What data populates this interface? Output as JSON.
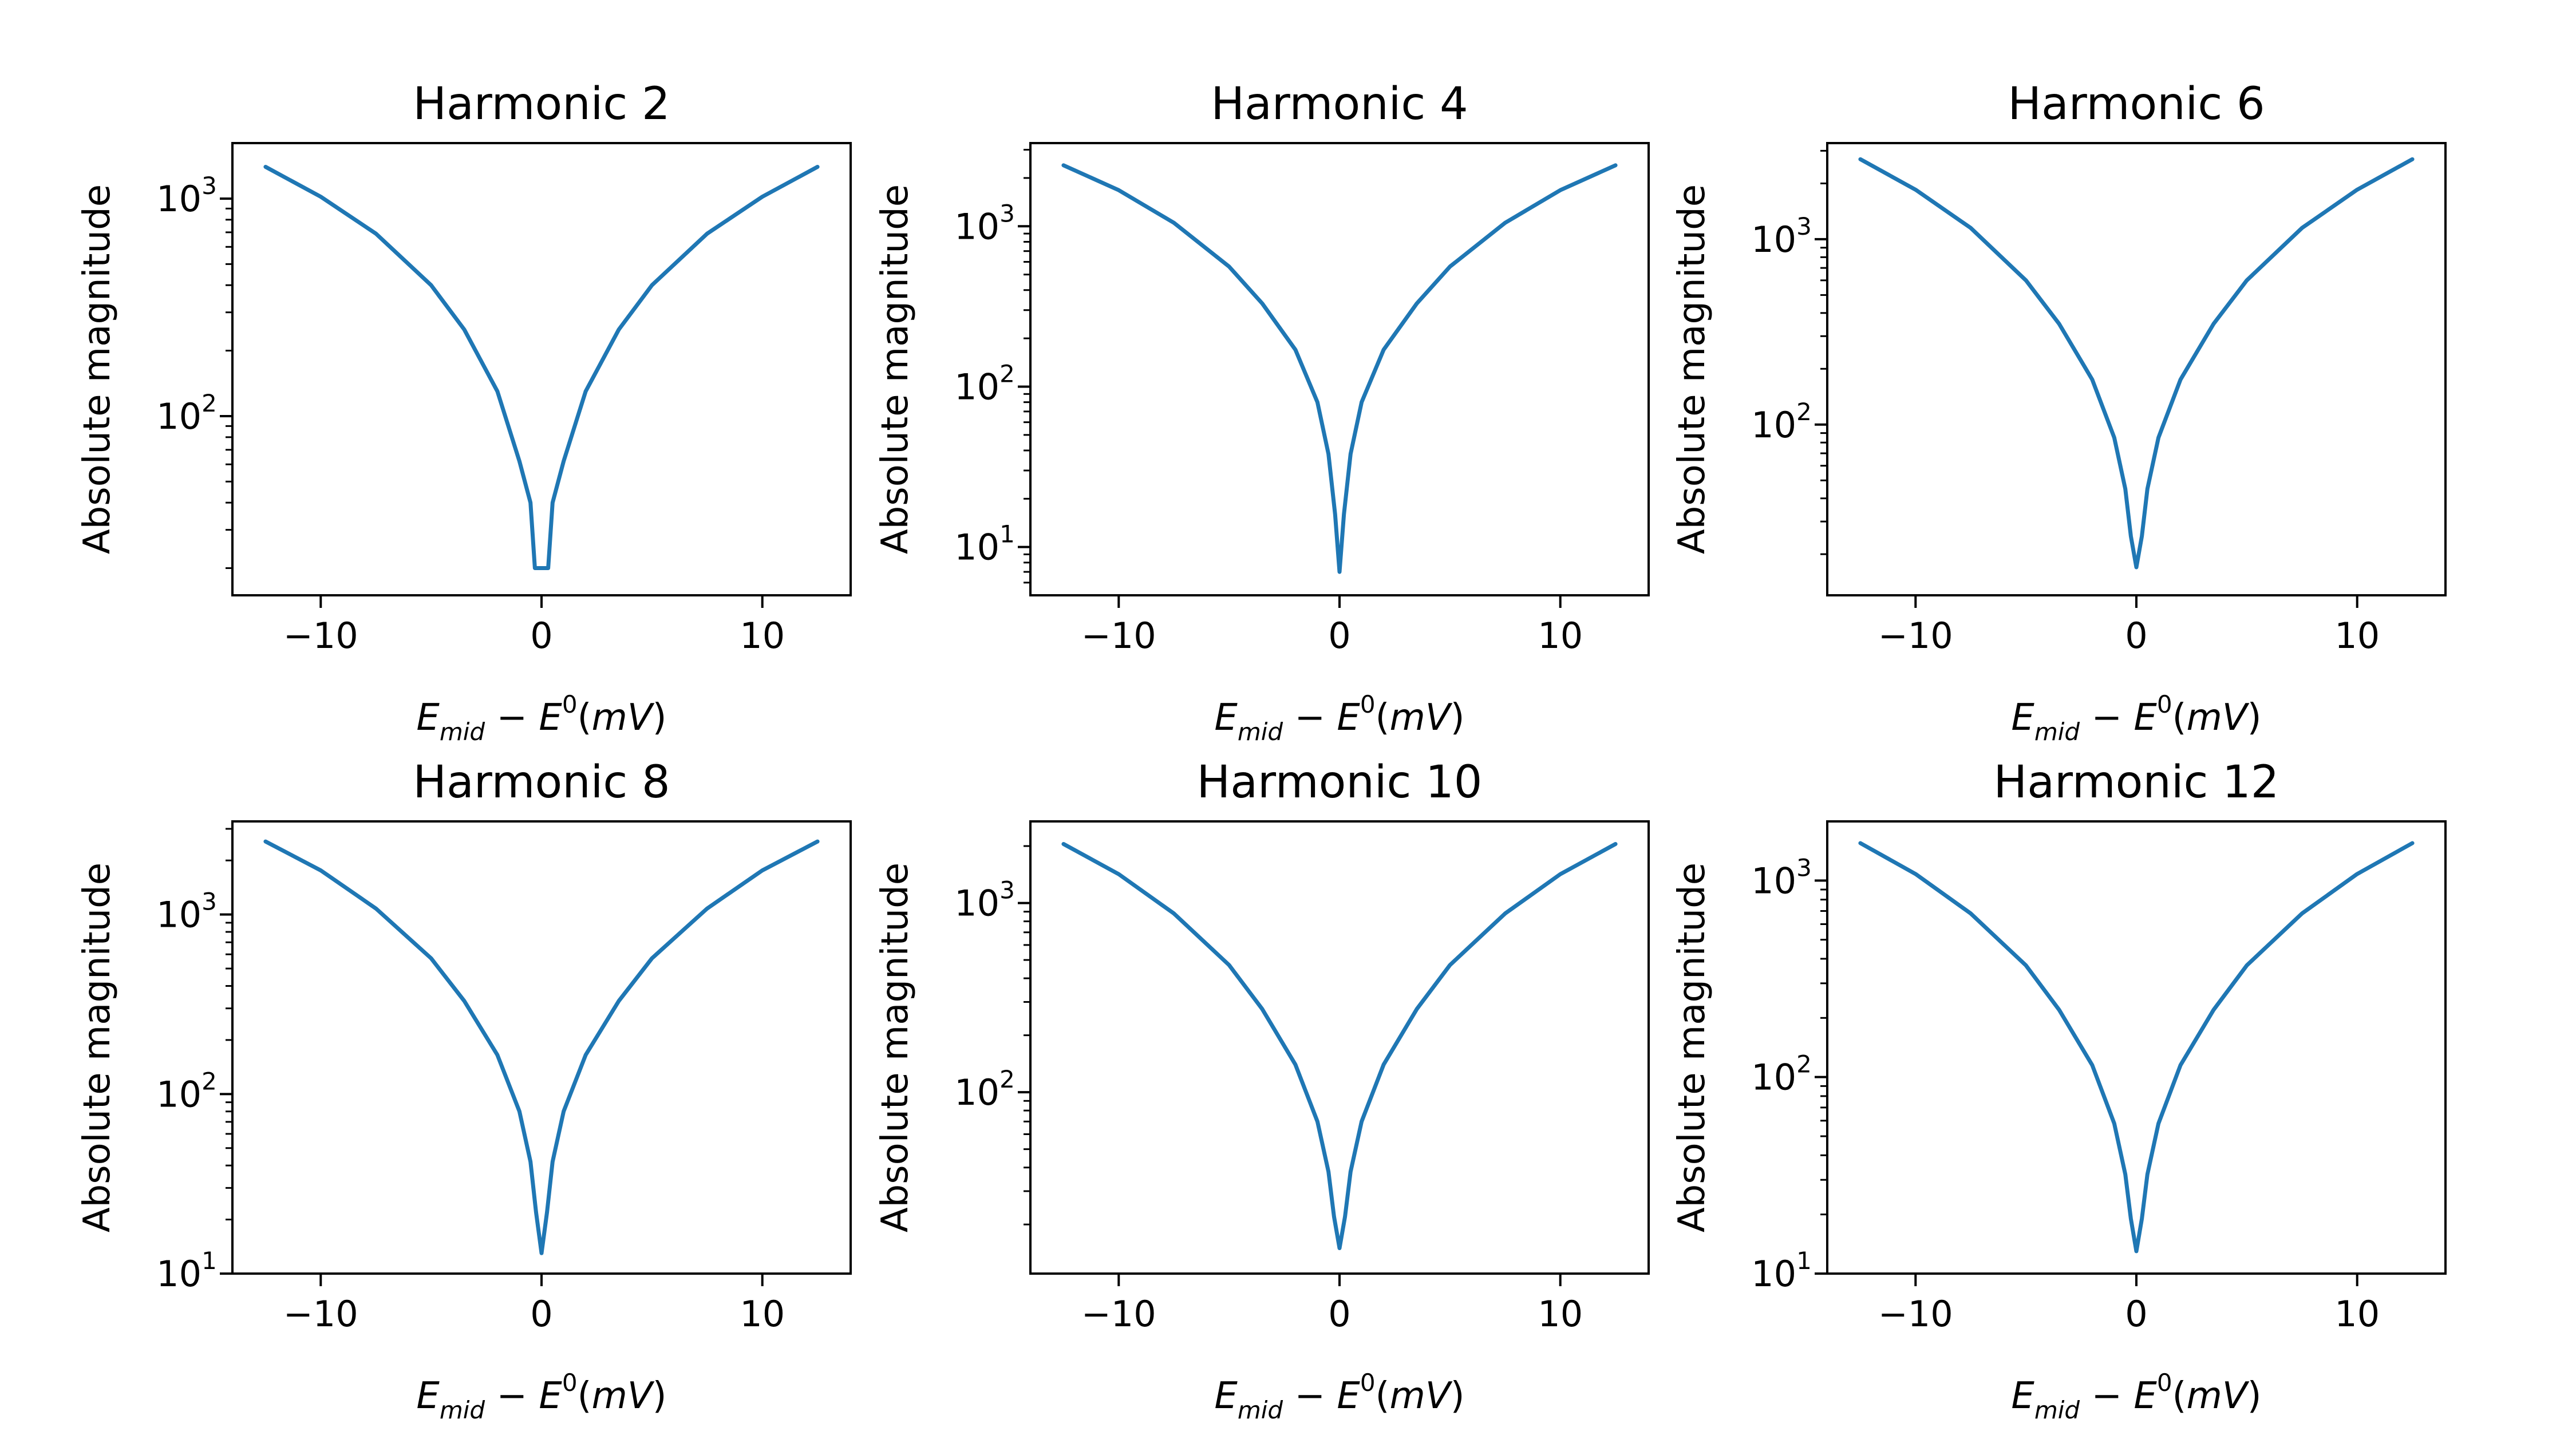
{
  "colors": {
    "series": "#1f77b4",
    "axes": "#000000",
    "background": "#ffffff"
  },
  "chart_data": [
    {
      "type": "line",
      "title": "Harmonic 2",
      "xlabel": "E_mid − E^0(mV)",
      "ylabel": "Absolute magnitude",
      "yscale": "log",
      "xlim": [
        -14,
        14
      ],
      "ylim": [
        15,
        1800
      ],
      "xticks": [
        -10,
        0,
        10
      ],
      "yticks": [
        100,
        1000
      ],
      "grid": false,
      "series": [
        {
          "x": [
            -12.5,
            -10,
            -7.5,
            -5,
            -3.5,
            -2,
            -1,
            -0.5,
            -0.3,
            0,
            0.3,
            0.5,
            1,
            2,
            3.5,
            5,
            7.5,
            10,
            12.5
          ],
          "y": [
            1400,
            1020,
            690,
            400,
            250,
            130,
            62,
            40,
            20,
            20,
            20,
            40,
            62,
            130,
            250,
            400,
            690,
            1020,
            1400
          ]
        }
      ]
    },
    {
      "type": "line",
      "title": "Harmonic 4",
      "xlabel": "E_mid − E^0(mV)",
      "ylabel": "Absolute magnitude",
      "yscale": "log",
      "xlim": [
        -14,
        14
      ],
      "ylim": [
        5,
        3300
      ],
      "xticks": [
        -10,
        0,
        10
      ],
      "yticks": [
        10,
        100,
        1000
      ],
      "grid": false,
      "series": [
        {
          "x": [
            -12.5,
            -10,
            -7.5,
            -5,
            -3.5,
            -2,
            -1,
            -0.5,
            -0.2,
            0,
            0.2,
            0.5,
            1,
            2,
            3.5,
            5,
            7.5,
            10,
            12.5
          ],
          "y": [
            2400,
            1680,
            1050,
            560,
            330,
            170,
            80,
            38,
            16,
            7,
            16,
            38,
            80,
            170,
            330,
            560,
            1050,
            1680,
            2400
          ]
        }
      ]
    },
    {
      "type": "line",
      "title": "Harmonic 6",
      "xlabel": "E_mid − E^0(mV)",
      "ylabel": "Absolute magnitude",
      "yscale": "log",
      "xlim": [
        -14,
        14
      ],
      "ylim": [
        12,
        3300
      ],
      "xticks": [
        -10,
        0,
        10
      ],
      "yticks": [
        100,
        1000
      ],
      "grid": false,
      "series": [
        {
          "x": [
            -12.5,
            -10,
            -7.5,
            -5,
            -3.5,
            -2,
            -1,
            -0.5,
            -0.25,
            0,
            0.25,
            0.5,
            1,
            2,
            3.5,
            5,
            7.5,
            10,
            12.5
          ],
          "y": [
            2700,
            1850,
            1150,
            600,
            350,
            175,
            85,
            45,
            25,
            17,
            25,
            45,
            85,
            175,
            350,
            600,
            1150,
            1850,
            2700
          ]
        }
      ]
    },
    {
      "type": "line",
      "title": "Harmonic 8",
      "xlabel": "E_mid − E^0(mV)",
      "ylabel": "Absolute magnitude",
      "yscale": "log",
      "xlim": [
        -14,
        14
      ],
      "ylim": [
        10,
        3300
      ],
      "xticks": [
        -10,
        0,
        10
      ],
      "yticks": [
        10,
        100,
        1000
      ],
      "grid": false,
      "series": [
        {
          "x": [
            -12.5,
            -10,
            -7.5,
            -5,
            -3.5,
            -2,
            -1,
            -0.5,
            -0.25,
            0,
            0.25,
            0.5,
            1,
            2,
            3.5,
            5,
            7.5,
            10,
            12.5
          ],
          "y": [
            2550,
            1760,
            1080,
            570,
            330,
            165,
            80,
            42,
            22,
            13,
            22,
            42,
            80,
            165,
            330,
            570,
            1080,
            1760,
            2550
          ]
        }
      ]
    },
    {
      "type": "line",
      "title": "Harmonic 10",
      "xlabel": "E_mid − E^0(mV)",
      "ylabel": "Absolute magnitude",
      "yscale": "log",
      "xlim": [
        -14,
        14
      ],
      "ylim": [
        11,
        2700
      ],
      "xticks": [
        -10,
        0,
        10
      ],
      "yticks": [
        100,
        1000
      ],
      "grid": false,
      "series": [
        {
          "x": [
            -12.5,
            -10,
            -7.5,
            -5,
            -3.5,
            -2,
            -1,
            -0.5,
            -0.25,
            0,
            0.25,
            0.5,
            1,
            2,
            3.5,
            5,
            7.5,
            10,
            12.5
          ],
          "y": [
            2050,
            1420,
            880,
            470,
            275,
            140,
            70,
            38,
            22,
            15,
            22,
            38,
            70,
            140,
            275,
            470,
            880,
            1420,
            2050
          ]
        }
      ]
    },
    {
      "type": "line",
      "title": "Harmonic 12",
      "xlabel": "E_mid − E^0(mV)",
      "ylabel": "Absolute magnitude",
      "yscale": "log",
      "xlim": [
        -14,
        14
      ],
      "ylim": [
        10,
        2000
      ],
      "xticks": [
        -10,
        0,
        10
      ],
      "yticks": [
        10,
        100,
        1000
      ],
      "grid": false,
      "series": [
        {
          "x": [
            -12.5,
            -10,
            -7.5,
            -5,
            -3.5,
            -2,
            -1,
            -0.5,
            -0.25,
            0,
            0.25,
            0.5,
            1,
            2,
            3.5,
            5,
            7.5,
            10,
            12.5
          ],
          "y": [
            1550,
            1080,
            680,
            370,
            220,
            115,
            58,
            32,
            19,
            13,
            19,
            32,
            58,
            115,
            220,
            370,
            680,
            1080,
            1550
          ]
        }
      ]
    }
  ]
}
